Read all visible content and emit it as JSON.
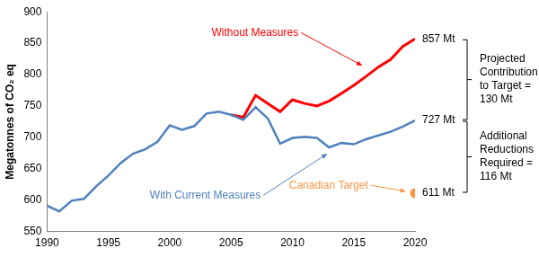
{
  "chart_data": {
    "type": "line",
    "y_label": "Megatonnes of CO₂ eq",
    "x": [
      1990,
      1991,
      1992,
      1993,
      1994,
      1995,
      1996,
      1997,
      1998,
      1999,
      2000,
      2001,
      2002,
      2003,
      2004,
      2005,
      2006,
      2007,
      2008,
      2009,
      2010,
      2011,
      2012,
      2013,
      2014,
      2015,
      2016,
      2017,
      2018,
      2019,
      2020
    ],
    "series": [
      {
        "name": "With Current Measures",
        "color": "#4f81bd",
        "line_style": "solid",
        "values": [
          591,
          582,
          599,
          602,
          622,
          639,
          659,
          674,
          681,
          693,
          719,
          712,
          718,
          738,
          741,
          736,
          728,
          748,
          730,
          690,
          699,
          701,
          699,
          684,
          691,
          689,
          697,
          703,
          709,
          717,
          727
        ]
      },
      {
        "name": "Without Measures",
        "color": "#ff0000",
        "line_style": "solid",
        "values": [
          null,
          null,
          null,
          null,
          null,
          null,
          null,
          null,
          null,
          null,
          null,
          null,
          null,
          null,
          null,
          736,
          732,
          767,
          754,
          741,
          760,
          754,
          750,
          758,
          770,
          783,
          797,
          812,
          824,
          845,
          857
        ]
      },
      {
        "name": "Canadian Target",
        "color": "#f79646",
        "type": "scatter",
        "marker": "circle",
        "values": [
          null,
          null,
          null,
          null,
          null,
          null,
          null,
          null,
          null,
          null,
          null,
          null,
          null,
          null,
          null,
          null,
          null,
          null,
          null,
          null,
          null,
          null,
          null,
          null,
          null,
          null,
          null,
          null,
          null,
          null,
          611
        ]
      }
    ],
    "xlim": [
      1990,
      2020
    ],
    "xticks": [
      1990,
      1995,
      2000,
      2005,
      2010,
      2015,
      2020
    ],
    "ylim": [
      550,
      900
    ],
    "yticks": [
      550,
      600,
      650,
      700,
      750,
      800,
      850,
      900
    ],
    "grid": false,
    "right_labels": [
      {
        "value": 857,
        "label": "857 Mt"
      },
      {
        "value": 727,
        "label": "727 Mt"
      },
      {
        "value": 611,
        "label": "611 Mt"
      }
    ],
    "brackets": [
      {
        "from": 857,
        "to": 727,
        "label": [
          "Projected",
          "Contribution",
          "to Target =",
          "130 Mt"
        ]
      },
      {
        "from": 727,
        "to": 611,
        "label": [
          "Additional",
          "Reductions",
          "Required =",
          "116 Mt"
        ]
      }
    ]
  }
}
